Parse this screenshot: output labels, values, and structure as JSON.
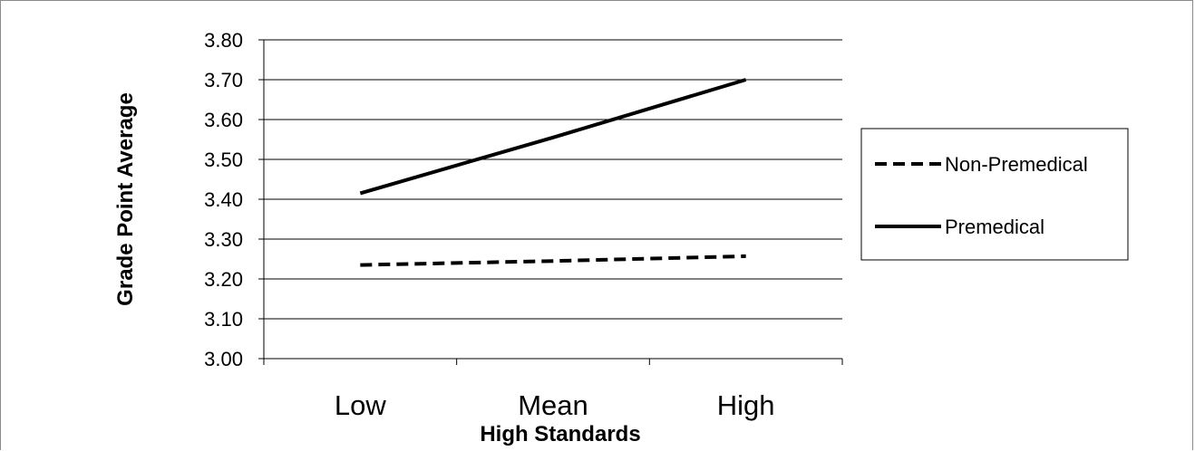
{
  "chart_data": {
    "type": "line",
    "categories": [
      "Low",
      "Mean",
      "High"
    ],
    "series": [
      {
        "name": "Non-Premedical",
        "values": [
          3.235,
          3.245,
          3.257
        ],
        "style": "dashed",
        "color": "#000000"
      },
      {
        "name": "Premedical",
        "values": [
          3.415,
          3.555,
          3.7
        ],
        "style": "solid",
        "color": "#000000"
      }
    ],
    "xlabel": "High Standards",
    "ylabel": "Grade Point Average",
    "ylim": [
      3.0,
      3.8
    ],
    "yticks": [
      "3.00",
      "3.10",
      "3.20",
      "3.30",
      "3.40",
      "3.50",
      "3.60",
      "3.70",
      "3.80"
    ],
    "grid": true,
    "legend": "right"
  }
}
